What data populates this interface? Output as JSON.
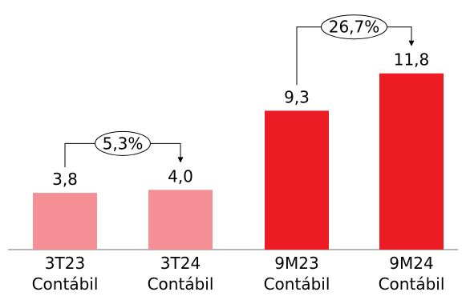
{
  "chart_data": {
    "type": "bar",
    "title": "",
    "xlabel": "",
    "ylabel": "",
    "ylim": [
      0,
      13.5
    ],
    "grid": false,
    "legend": "none",
    "categories": [
      {
        "line1": "3T23",
        "line2": "Contábil"
      },
      {
        "line1": "3T24",
        "line2": "Contábil"
      },
      {
        "line1": "9M23",
        "line2": "Contábil"
      },
      {
        "line1": "9M24",
        "line2": "Contábil"
      }
    ],
    "values": [
      3.8,
      4.0,
      9.3,
      11.8
    ],
    "value_labels": [
      "3,8",
      "4,0",
      "9,3",
      "11,8"
    ],
    "colors": [
      "#f48f96",
      "#f48f96",
      "#ed1c24",
      "#ed1c24"
    ],
    "annotations": [
      {
        "from": 0,
        "to": 1,
        "label": "5,3%"
      },
      {
        "from": 2,
        "to": 3,
        "label": "26,7%"
      }
    ]
  }
}
